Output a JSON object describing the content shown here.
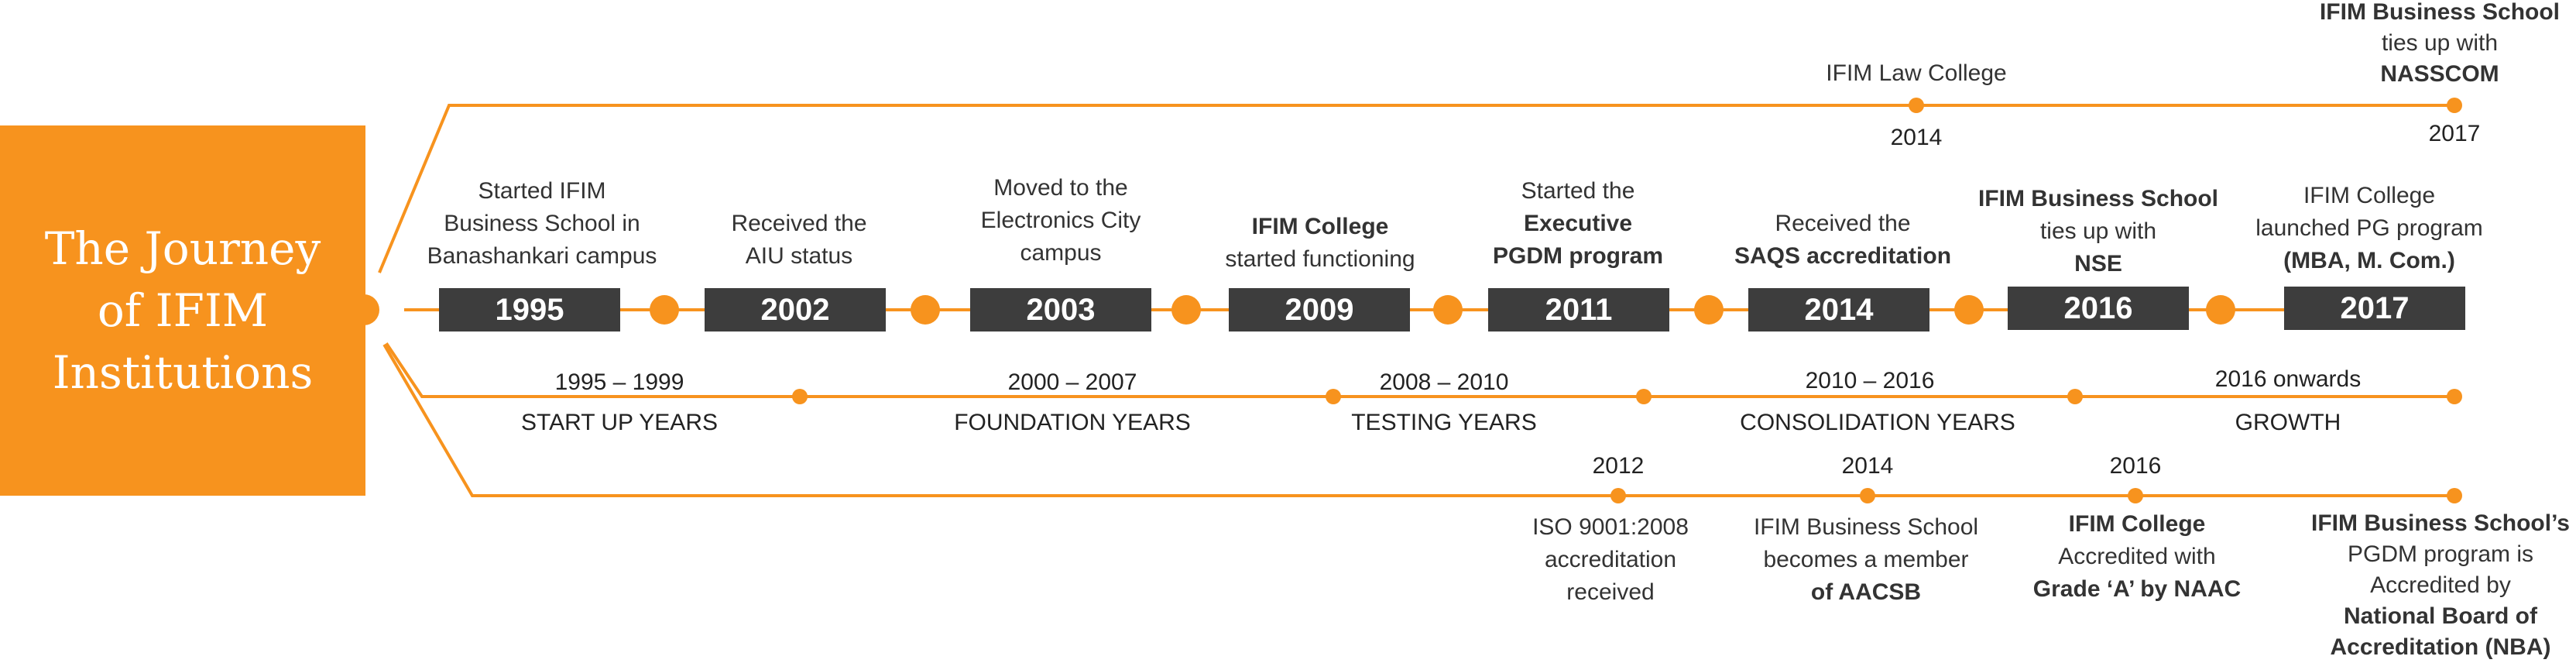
{
  "title": "The Journey of IFIM Institutions",
  "colors": {
    "accent": "#F7931E",
    "year_box": "#3d3d3d",
    "text": "#333333"
  },
  "top_track": [
    {
      "year": "2014",
      "text": "IFIM Law College"
    },
    {
      "year": "2017",
      "lines": [
        "IFIM Business School",
        "ties up with",
        "NASSCOM"
      ]
    }
  ],
  "main_track": [
    {
      "year": "1995",
      "lines": [
        "Started IFIM",
        "Business School in",
        "Banashankari campus"
      ]
    },
    {
      "year": "2002",
      "lines": [
        "Received the",
        "AIU status"
      ]
    },
    {
      "year": "2003",
      "lines": [
        "Moved to the",
        "Electronics City",
        "campus"
      ]
    },
    {
      "year": "2009",
      "lines": [
        "IFIM College",
        "started functioning"
      ]
    },
    {
      "year": "2011",
      "lines": [
        "Started the",
        "Executive",
        "PGDM program"
      ]
    },
    {
      "year": "2014",
      "lines": [
        "Received the",
        "SAQS accreditation"
      ]
    },
    {
      "year": "2016",
      "lines": [
        "IFIM Business School",
        "ties up with",
        "NSE"
      ]
    },
    {
      "year": "2017",
      "lines": [
        "IFIM College",
        "launched PG program",
        "(MBA, M. Com.)"
      ]
    }
  ],
  "phases": [
    {
      "range": "1995 – 1999",
      "name": "START UP YEARS"
    },
    {
      "range": "2000 – 2007",
      "name": "FOUNDATION YEARS"
    },
    {
      "range": "2008 – 2010",
      "name": "TESTING YEARS"
    },
    {
      "range": "2010 – 2016",
      "name": "CONSOLIDATION YEARS"
    },
    {
      "range": "2016 onwards",
      "name": "GROWTH"
    }
  ],
  "bottom_track": [
    {
      "year": "2012",
      "lines": [
        "ISO 9001:2008",
        "accreditation",
        "received"
      ]
    },
    {
      "year": "2014",
      "lines": [
        "IFIM Business School",
        "becomes a member",
        "of AACSB"
      ]
    },
    {
      "year": "2016",
      "lines": [
        "IFIM College",
        "Accredited with",
        "Grade ‘A’ by NAAC"
      ]
    },
    {
      "year": "",
      "lines": [
        "IFIM Business School’s",
        "PGDM program is",
        "Accredited by",
        "National Board of",
        "Accreditation (NBA)"
      ]
    }
  ]
}
